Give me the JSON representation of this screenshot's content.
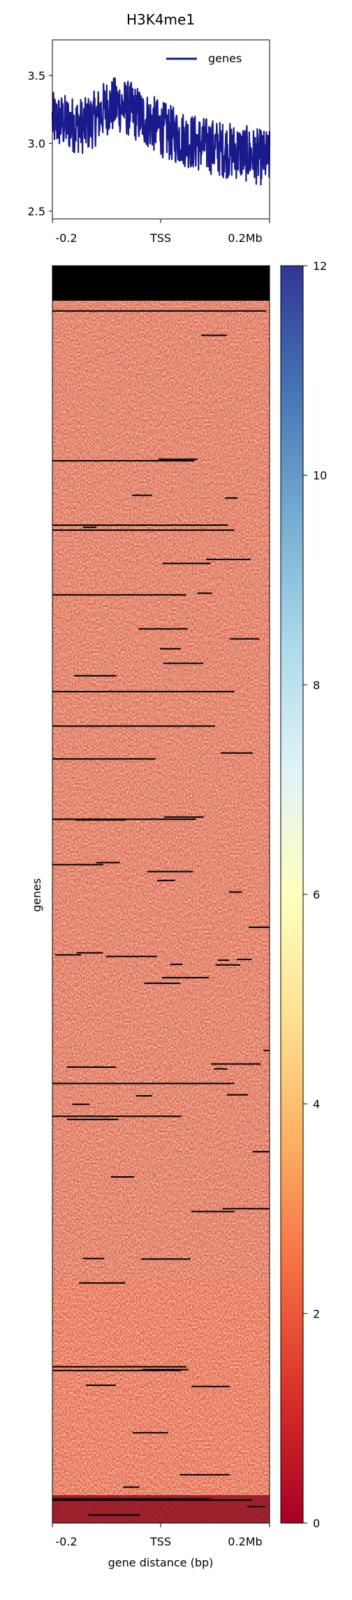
{
  "chart_data": [
    {
      "type": "line",
      "title": "H3K4me1",
      "legend": {
        "entries": [
          "genes"
        ],
        "position": "top-right"
      },
      "xlabel": "",
      "x_ticks": [
        "-0.2",
        "TSS",
        "0.2Mb"
      ],
      "y_ticks": [
        "2.5",
        "3.0",
        "3.5"
      ],
      "ylim": [
        2.45,
        3.78
      ],
      "xlim": [
        -200000,
        200000
      ],
      "series": [
        {
          "name": "genes",
          "color": "#1a1a8c",
          "x": [
            -200000,
            -180000,
            -160000,
            -140000,
            -120000,
            -100000,
            -80000,
            -60000,
            -40000,
            -20000,
            0,
            20000,
            40000,
            60000,
            80000,
            100000,
            120000,
            140000,
            160000,
            180000,
            200000
          ],
          "y": [
            3.18,
            3.17,
            3.15,
            3.14,
            3.2,
            3.28,
            3.3,
            3.27,
            3.22,
            3.17,
            3.12,
            3.08,
            3.05,
            3.02,
            3.0,
            2.98,
            2.96,
            2.95,
            2.93,
            2.91,
            2.9
          ]
        }
      ]
    },
    {
      "type": "heatmap",
      "xlabel": "gene distance (bp)",
      "ylabel": "genes",
      "x_ticks": [
        "-0.2",
        "TSS",
        "0.2Mb"
      ],
      "colormap": "RdYlBu",
      "colorbar": {
        "min": 0,
        "max": 12,
        "ticks": [
          "0",
          "2",
          "4",
          "6",
          "8",
          "10",
          "12"
        ]
      },
      "colors": {
        "low": "#a50026",
        "mid": "#ffffbf",
        "high": "#313695",
        "missing": "#000000"
      }
    }
  ]
}
